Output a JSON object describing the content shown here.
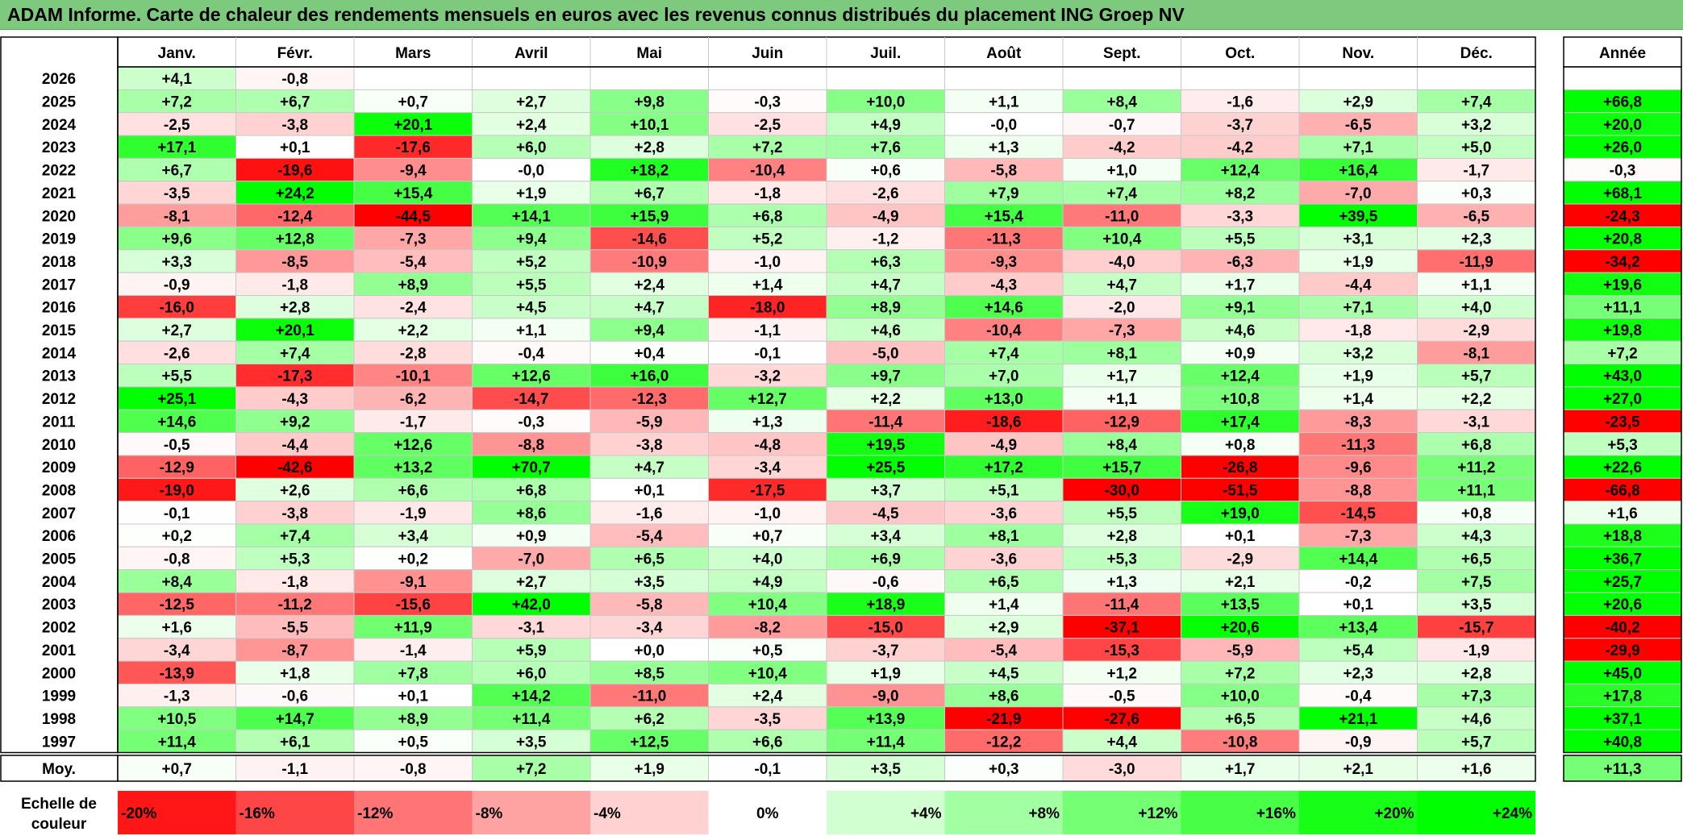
{
  "title": "ADAM Informe. Carte de chaleur des rendements mensuels en euros avec les revenus connus distribués du placement ING Groep NV",
  "chart_data": {
    "type": "heatmap",
    "months": [
      "Janv.",
      "Févr.",
      "Mars",
      "Avril",
      "Mai",
      "Juin",
      "Juil.",
      "Août",
      "Sept.",
      "Oct.",
      "Nov.",
      "Déc."
    ],
    "year_header": "Année",
    "rows": [
      {
        "year": "2026",
        "values": [
          "+4,1",
          "-0,8",
          "",
          "",
          "",
          "",
          "",
          "",
          "",
          "",
          "",
          ""
        ],
        "annual": ""
      },
      {
        "year": "2025",
        "values": [
          "+7,2",
          "+6,7",
          "+0,7",
          "+2,7",
          "+9,8",
          "-0,3",
          "+10,0",
          "+1,1",
          "+8,4",
          "-1,6",
          "+2,9",
          "+7,4"
        ],
        "annual": "+66,8"
      },
      {
        "year": "2024",
        "values": [
          "-2,5",
          "-3,8",
          "+20,1",
          "+2,4",
          "+10,1",
          "-2,5",
          "+4,9",
          "-0,0",
          "-0,7",
          "-3,7",
          "-6,5",
          "+3,2"
        ],
        "annual": "+20,0"
      },
      {
        "year": "2023",
        "values": [
          "+17,1",
          "+0,1",
          "-17,6",
          "+6,0",
          "+2,8",
          "+7,2",
          "+7,6",
          "+1,3",
          "-4,2",
          "-4,2",
          "+7,1",
          "+5,0"
        ],
        "annual": "+26,0"
      },
      {
        "year": "2022",
        "values": [
          "+6,7",
          "-19,6",
          "-9,4",
          "-0,0",
          "+18,2",
          "-10,4",
          "+0,6",
          "-5,8",
          "+1,0",
          "+12,4",
          "+16,4",
          "-1,7"
        ],
        "annual": "-0,3"
      },
      {
        "year": "2021",
        "values": [
          "-3,5",
          "+24,2",
          "+15,4",
          "+1,9",
          "+6,7",
          "-1,8",
          "-2,6",
          "+7,9",
          "+7,4",
          "+8,2",
          "-7,0",
          "+0,3"
        ],
        "annual": "+68,1"
      },
      {
        "year": "2020",
        "values": [
          "-8,1",
          "-12,4",
          "-44,5",
          "+14,1",
          "+15,9",
          "+6,8",
          "-4,9",
          "+15,4",
          "-11,0",
          "-3,3",
          "+39,5",
          "-6,5"
        ],
        "annual": "-24,3"
      },
      {
        "year": "2019",
        "values": [
          "+9,6",
          "+12,8",
          "-7,3",
          "+9,4",
          "-14,6",
          "+5,2",
          "-1,2",
          "-11,3",
          "+10,4",
          "+5,5",
          "+3,1",
          "+2,3"
        ],
        "annual": "+20,8"
      },
      {
        "year": "2018",
        "values": [
          "+3,3",
          "-8,5",
          "-5,4",
          "+5,2",
          "-10,9",
          "-1,0",
          "+6,3",
          "-9,3",
          "-4,0",
          "-6,3",
          "+1,9",
          "-11,9"
        ],
        "annual": "-34,2"
      },
      {
        "year": "2017",
        "values": [
          "-0,9",
          "-1,8",
          "+8,9",
          "+5,5",
          "+2,4",
          "+1,4",
          "+4,7",
          "-4,3",
          "+4,7",
          "+1,7",
          "-4,4",
          "+1,1"
        ],
        "annual": "+19,6"
      },
      {
        "year": "2016",
        "values": [
          "-16,0",
          "+2,8",
          "-2,4",
          "+4,5",
          "+4,7",
          "-18,0",
          "+8,9",
          "+14,6",
          "-2,0",
          "+9,1",
          "+7,1",
          "+4,0"
        ],
        "annual": "+11,1"
      },
      {
        "year": "2015",
        "values": [
          "+2,7",
          "+20,1",
          "+2,2",
          "+1,1",
          "+9,4",
          "-1,1",
          "+4,6",
          "-10,4",
          "-7,3",
          "+4,6",
          "-1,8",
          "-2,9"
        ],
        "annual": "+19,8"
      },
      {
        "year": "2014",
        "values": [
          "-2,6",
          "+7,4",
          "-2,8",
          "-0,4",
          "+0,4",
          "-0,1",
          "-5,0",
          "+7,4",
          "+8,1",
          "+0,9",
          "+3,2",
          "-8,1"
        ],
        "annual": "+7,2"
      },
      {
        "year": "2013",
        "values": [
          "+5,5",
          "-17,3",
          "-10,1",
          "+12,6",
          "+16,0",
          "-3,2",
          "+9,7",
          "+7,0",
          "+1,7",
          "+12,4",
          "+1,9",
          "+5,7"
        ],
        "annual": "+43,0"
      },
      {
        "year": "2012",
        "values": [
          "+25,1",
          "-4,3",
          "-6,2",
          "-14,7",
          "-12,3",
          "+12,7",
          "+2,2",
          "+13,0",
          "+1,1",
          "+10,8",
          "+1,4",
          "+2,2"
        ],
        "annual": "+27,0"
      },
      {
        "year": "2011",
        "values": [
          "+14,6",
          "+9,2",
          "-1,7",
          "-0,3",
          "-5,9",
          "+1,3",
          "-11,4",
          "-18,6",
          "-12,9",
          "+17,4",
          "-8,3",
          "-3,1"
        ],
        "annual": "-23,5"
      },
      {
        "year": "2010",
        "values": [
          "-0,5",
          "-4,4",
          "+12,6",
          "-8,8",
          "-3,8",
          "-4,8",
          "+19,5",
          "-4,9",
          "+8,4",
          "+0,8",
          "-11,3",
          "+6,8"
        ],
        "annual": "+5,3"
      },
      {
        "year": "2009",
        "values": [
          "-12,9",
          "-42,6",
          "+13,2",
          "+70,7",
          "+4,7",
          "-3,4",
          "+25,5",
          "+17,2",
          "+15,7",
          "-26,8",
          "-9,6",
          "+11,2"
        ],
        "annual": "+22,6"
      },
      {
        "year": "2008",
        "values": [
          "-19,0",
          "+2,6",
          "+6,6",
          "+6,8",
          "+0,1",
          "-17,5",
          "+3,7",
          "+5,1",
          "-30,0",
          "-51,5",
          "-8,8",
          "+11,1"
        ],
        "annual": "-66,8"
      },
      {
        "year": "2007",
        "values": [
          "-0,1",
          "-3,8",
          "-1,9",
          "+8,6",
          "-1,6",
          "-1,0",
          "-4,5",
          "-3,6",
          "+5,5",
          "+19,0",
          "-14,5",
          "+0,8"
        ],
        "annual": "+1,6"
      },
      {
        "year": "2006",
        "values": [
          "+0,2",
          "+7,4",
          "+3,4",
          "+0,9",
          "-5,4",
          "+0,7",
          "+3,4",
          "+8,1",
          "+2,8",
          "+0,1",
          "-7,3",
          "+4,3"
        ],
        "annual": "+18,8"
      },
      {
        "year": "2005",
        "values": [
          "-0,8",
          "+5,3",
          "+0,2",
          "-7,0",
          "+6,5",
          "+4,0",
          "+6,9",
          "-3,6",
          "+5,3",
          "-2,9",
          "+14,4",
          "+6,5"
        ],
        "annual": "+36,7"
      },
      {
        "year": "2004",
        "values": [
          "+8,4",
          "-1,8",
          "-9,1",
          "+2,7",
          "+3,5",
          "+4,9",
          "-0,6",
          "+6,5",
          "+1,3",
          "+2,1",
          "-0,2",
          "+7,5"
        ],
        "annual": "+25,7"
      },
      {
        "year": "2003",
        "values": [
          "-12,5",
          "-11,2",
          "-15,6",
          "+42,0",
          "-5,8",
          "+10,4",
          "+18,9",
          "+1,4",
          "-11,4",
          "+13,5",
          "+0,1",
          "+3,5"
        ],
        "annual": "+20,6"
      },
      {
        "year": "2002",
        "values": [
          "+1,6",
          "-5,5",
          "+11,9",
          "-3,1",
          "-3,4",
          "-8,2",
          "-15,0",
          "+2,9",
          "-37,1",
          "+20,6",
          "+13,4",
          "-15,7"
        ],
        "annual": "-40,2"
      },
      {
        "year": "2001",
        "values": [
          "-3,4",
          "-8,7",
          "-1,4",
          "+5,9",
          "+0,0",
          "+0,5",
          "-3,7",
          "-5,4",
          "-15,3",
          "-5,9",
          "+5,4",
          "-1,9"
        ],
        "annual": "-29,9"
      },
      {
        "year": "2000",
        "values": [
          "-13,9",
          "+1,8",
          "+7,8",
          "+6,0",
          "+8,5",
          "+10,4",
          "+1,9",
          "+4,5",
          "+1,2",
          "+7,2",
          "+2,3",
          "+2,8"
        ],
        "annual": "+45,0"
      },
      {
        "year": "1999",
        "values": [
          "-1,3",
          "-0,6",
          "+0,1",
          "+14,2",
          "-11,0",
          "+2,4",
          "-9,0",
          "+8,6",
          "-0,5",
          "+10,0",
          "-0,4",
          "+7,3"
        ],
        "annual": "+17,8"
      },
      {
        "year": "1998",
        "values": [
          "+10,5",
          "+14,7",
          "+8,9",
          "+11,4",
          "+6,2",
          "-3,5",
          "+13,9",
          "-21,9",
          "-27,6",
          "+6,5",
          "+21,1",
          "+4,6"
        ],
        "annual": "+37,1"
      },
      {
        "year": "1997",
        "values": [
          "+11,4",
          "+6,1",
          "+0,5",
          "+3,5",
          "+12,5",
          "+6,6",
          "+11,4",
          "-12,2",
          "+4,4",
          "-10,8",
          "-0,9",
          "+5,7"
        ],
        "annual": "+40,8"
      }
    ],
    "average": {
      "label": "Moy.",
      "values": [
        "+0,7",
        "-1,1",
        "-0,8",
        "+7,2",
        "+1,9",
        "-0,1",
        "+3,5",
        "+0,3",
        "-3,0",
        "+1,7",
        "+2,1",
        "+1,6"
      ],
      "annual": "+11,3"
    },
    "scale": {
      "label_line1": "Echelle de",
      "label_line2": "couleur",
      "steps": [
        {
          "text": "-20%",
          "value": -20,
          "align": "left"
        },
        {
          "text": "-16%",
          "value": -16,
          "align": "left"
        },
        {
          "text": "-12%",
          "value": -12,
          "align": "left"
        },
        {
          "text": "-8%",
          "value": -8,
          "align": "left"
        },
        {
          "text": "-4%",
          "value": -4,
          "align": "left"
        },
        {
          "text": "0%",
          "value": 0,
          "align": "center"
        },
        {
          "text": "+4%",
          "value": 4,
          "align": "right"
        },
        {
          "text": "+8%",
          "value": 8,
          "align": "right"
        },
        {
          "text": "+12%",
          "value": 12,
          "align": "right"
        },
        {
          "text": "+16%",
          "value": 16,
          "align": "right"
        },
        {
          "text": "+20%",
          "value": 20,
          "align": "right"
        },
        {
          "text": "+24%",
          "value": 24,
          "align": "right"
        }
      ]
    },
    "colors": {
      "negative_max": "#ff0000",
      "neutral": "#ffffff",
      "positive_max": "#00ff00"
    }
  }
}
